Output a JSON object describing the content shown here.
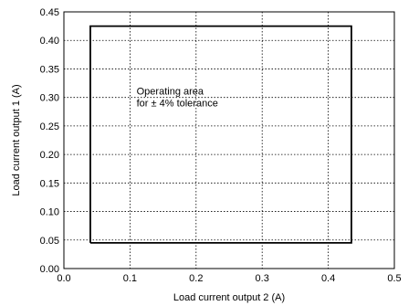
{
  "chart_data": {
    "type": "line",
    "title": "",
    "xlabel": "Load current output 2 (A)",
    "ylabel": "Load current output 1 (A)",
    "xlim": [
      0.0,
      0.5
    ],
    "ylim": [
      0.0,
      0.45
    ],
    "xticks": [
      "0.0",
      "0.1",
      "0.2",
      "0.3",
      "0.4",
      "0.5"
    ],
    "yticks": [
      "0.00",
      "0.05",
      "0.10",
      "0.15",
      "0.20",
      "0.25",
      "0.30",
      "0.35",
      "0.40",
      "0.45"
    ],
    "grid": true,
    "grid_style": "dotted",
    "series": [
      {
        "x": [
          0.04,
          0.435,
          0.435,
          0.04,
          0.04
        ],
        "y": [
          0.045,
          0.045,
          0.425,
          0.425,
          0.045
        ]
      }
    ],
    "annotations": [
      {
        "lines": [
          "Operating area",
          "for ± 4% tolerance"
        ],
        "x": 0.11,
        "y": 0.305
      }
    ],
    "colors": {
      "line": "#000000",
      "grid": "#000000",
      "axes": "#000000"
    }
  }
}
